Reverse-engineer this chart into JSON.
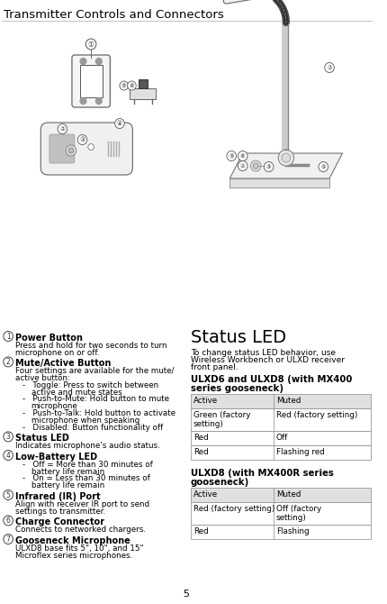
{
  "title": "Transmitter Controls and Connectors",
  "page_number": "5",
  "background_color": "#ffffff",
  "text_color": "#000000",
  "items": [
    {
      "num": "1",
      "heading": "Power Button",
      "body_lines": [
        {
          "text": "Press and hold for two seconds to turn",
          "indent": 0
        },
        {
          "text": "microphone on or off.",
          "indent": 0
        }
      ]
    },
    {
      "num": "2",
      "heading": "Mute/Active Button",
      "body_lines": [
        {
          "text": "Four settings are available for the mute/",
          "indent": 0
        },
        {
          "text": "active button:",
          "indent": 0
        },
        {
          "text": "-   Toggle: Press to switch between",
          "indent": 8
        },
        {
          "text": "active and mute states",
          "indent": 18
        },
        {
          "text": "-   Push-to-Mute: Hold button to mute",
          "indent": 8
        },
        {
          "text": "microphone",
          "indent": 18
        },
        {
          "text": "-   Push-to-Talk: Hold button to activate",
          "indent": 8
        },
        {
          "text": "microphone when speaking",
          "indent": 18
        },
        {
          "text": "-   Disabled: Button functionality off",
          "indent": 8
        }
      ]
    },
    {
      "num": "3",
      "heading": "Status LED",
      "body_lines": [
        {
          "text": "Indicates microphone's audio status.",
          "indent": 0
        }
      ]
    },
    {
      "num": "4",
      "heading": "Low-Battery LED",
      "body_lines": [
        {
          "text": "-   Off = More than 30 minutes of",
          "indent": 8
        },
        {
          "text": "battery life remain",
          "indent": 18
        },
        {
          "text": "-   On = Less than 30 minutes of",
          "indent": 8
        },
        {
          "text": "battery life remain",
          "indent": 18
        }
      ]
    },
    {
      "num": "5",
      "heading": "Infrared (IR) Port",
      "body_lines": [
        {
          "text": "Align with receiver IR port to send",
          "indent": 0
        },
        {
          "text": "settings to transmitter.",
          "indent": 0
        }
      ]
    },
    {
      "num": "6",
      "heading": "Charge Connector",
      "body_lines": [
        {
          "text": "Connects to networked chargers.",
          "indent": 0
        }
      ]
    },
    {
      "num": "7",
      "heading": "Gooseneck Microphone",
      "body_lines": [
        {
          "text": "ULXD8 base fits 5\", 10\", and 15\"",
          "indent": 0
        },
        {
          "text": "Microflex series microphones.",
          "indent": 0
        }
      ]
    }
  ],
  "status_led_title": "Status LED",
  "status_led_body": [
    "To change status LED behavior, use",
    "Wireless Workbench or ULXD receiver",
    "front panel."
  ],
  "table1_title": [
    "ULXD6 and ULXD8 (with MX400",
    "series gooseneck)"
  ],
  "table1_header": [
    "Active",
    "Muted"
  ],
  "table1_rows": [
    [
      "Green (factory\nsetting)",
      "Red (factory setting)"
    ],
    [
      "Red",
      "Off"
    ],
    [
      "Red",
      "Flashing red"
    ]
  ],
  "table2_title": [
    "ULXD8 (with MX400R series",
    "gooseneck)"
  ],
  "table2_header": [
    "Active",
    "Muted"
  ],
  "table2_rows": [
    [
      "Red (factory setting)",
      "Off (factory\nsetting)"
    ],
    [
      "Red",
      "Flashing"
    ]
  ],
  "header_bg": "#e0e0e0",
  "table_border": "#888888"
}
